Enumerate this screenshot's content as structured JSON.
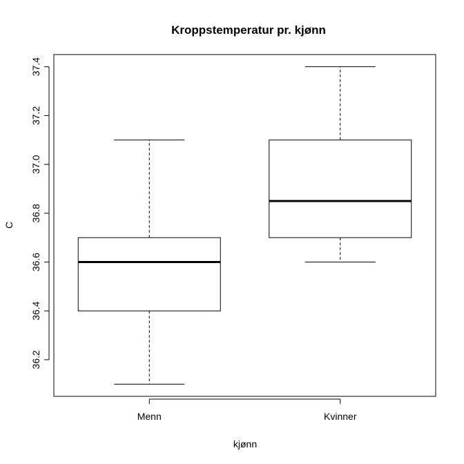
{
  "chart_data": {
    "type": "boxplot",
    "title": "Kroppstemperatur pr. kjønn",
    "xlabel": "kjønn",
    "ylabel": "C",
    "ylim": [
      36.05,
      37.45
    ],
    "yticks": [
      "36.2",
      "36.4",
      "36.6",
      "36.8",
      "37.0",
      "37.2",
      "37.4"
    ],
    "categories": [
      "Menn",
      "Kvinner"
    ],
    "boxes": [
      {
        "name": "Menn",
        "min": 36.1,
        "q1": 36.4,
        "median": 36.6,
        "q3": 36.7,
        "max": 37.1
      },
      {
        "name": "Kvinner",
        "min": 36.6,
        "q1": 36.7,
        "median": 36.85,
        "q3": 37.1,
        "max": 37.4
      }
    ],
    "grid": false,
    "colors": {
      "box_fill": "#ffffff",
      "stroke": "#000000"
    }
  }
}
